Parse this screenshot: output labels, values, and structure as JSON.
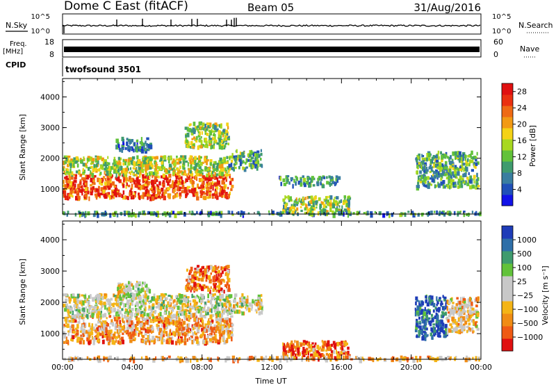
{
  "header": {
    "station": "Dome C East (fitACF)",
    "beam": "Beam 05",
    "date": "31/Aug/2016"
  },
  "top_panels": {
    "nsky_label": "N.Sky",
    "nsky_top_tick": "10^5",
    "nsky_bottom_tick": "10^0",
    "nsearch_label": "N.Search",
    "nsearch_top_tick": "10^5",
    "nsearch_bottom_tick": "10^0",
    "freq_label": "Freq.",
    "freq_unit": "[MHz]",
    "freq_top_tick": "18",
    "freq_bottom_tick": "8",
    "nave_label": "Nave",
    "nave_top_tick": "60",
    "nave_bottom_tick": "0",
    "cpid_label": "CPID",
    "cpid_value": "twofsound 3501"
  },
  "chart_data": [
    {
      "type": "heatmap",
      "panel": "power",
      "ylabel": "Slant Range [km]",
      "xlabel": "",
      "ylim": [
        180,
        4600
      ],
      "xlim_hours": [
        0,
        24
      ],
      "y_ticks": [
        "1000",
        "2000",
        "3000",
        "4000"
      ],
      "colorbar": {
        "label": "Power [dB]",
        "ticks": [
          "4",
          "8",
          "12",
          "16",
          "20",
          "24",
          "28"
        ],
        "range": [
          0,
          30
        ],
        "colors": [
          "#1212e8",
          "#2050b8",
          "#3a7ea0",
          "#3f9b6e",
          "#62c23a",
          "#a8d820",
          "#f4d216",
          "#f29a14",
          "#ef6a14",
          "#ea3010",
          "#e01010"
        ]
      },
      "regions": [
        {
          "t": [
            0.0,
            9.7
          ],
          "r": [
            750,
            1500
          ],
          "level": 0.82
        },
        {
          "t": [
            0.0,
            9.6
          ],
          "r": [
            1500,
            2100
          ],
          "level": 0.5
        },
        {
          "t": [
            3.0,
            5.0
          ],
          "r": [
            2300,
            2700
          ],
          "level": 0.25
        },
        {
          "t": [
            7.0,
            9.5
          ],
          "r": [
            2400,
            3200
          ],
          "level": 0.45
        },
        {
          "t": [
            9.5,
            11.4
          ],
          "r": [
            1700,
            2300
          ],
          "level": 0.35
        },
        {
          "t": [
            12.4,
            15.8
          ],
          "r": [
            1150,
            1450
          ],
          "level": 0.3
        },
        {
          "t": [
            12.6,
            16.4
          ],
          "r": [
            250,
            800
          ],
          "level": 0.45
        },
        {
          "t": [
            20.2,
            23.8
          ],
          "r": [
            1100,
            2250
          ],
          "level": 0.35
        },
        {
          "t": [
            0.0,
            24.0
          ],
          "r": [
            200,
            300
          ],
          "level": 0.3
        }
      ]
    },
    {
      "type": "heatmap",
      "panel": "velocity",
      "ylabel": "Slant Range [km]",
      "xlabel": "Time UT",
      "ylim": [
        180,
        4600
      ],
      "xlim_hours": [
        0,
        24
      ],
      "y_ticks": [
        "1000",
        "2000",
        "3000",
        "4000"
      ],
      "x_ticks": [
        "00:00",
        "04:00",
        "08:00",
        "12:00",
        "16:00",
        "20:00",
        "00:00"
      ],
      "colorbar": {
        "label": "Velocity [m s⁻¹]",
        "ticks": [
          "1000",
          "500",
          "100",
          "25",
          "−25",
          "−100",
          "−500",
          "−1000"
        ],
        "range": [
          -1200,
          1200
        ],
        "colors": [
          "#e01010",
          "#ef5a14",
          "#f08c14",
          "#f4b416",
          "#c8c8c8",
          "#c8c8c8",
          "#62c23a",
          "#3f9b6e",
          "#2e6fa8",
          "#1e3cb8"
        ]
      },
      "regions": [
        {
          "t": [
            0.0,
            9.7
          ],
          "r": [
            750,
            1600
          ],
          "level": 0.3
        },
        {
          "t": [
            0.0,
            9.6
          ],
          "r": [
            1600,
            2300
          ],
          "level": 0.5
        },
        {
          "t": [
            3.0,
            5.0
          ],
          "r": [
            2200,
            2700
          ],
          "level": 0.5
        },
        {
          "t": [
            7.0,
            9.5
          ],
          "r": [
            2400,
            3200
          ],
          "level": 0.2
        },
        {
          "t": [
            9.5,
            11.4
          ],
          "r": [
            1700,
            2300
          ],
          "level": 0.5
        },
        {
          "t": [
            12.6,
            16.4
          ],
          "r": [
            250,
            800
          ],
          "level": 0.2
        },
        {
          "t": [
            20.2,
            22.0
          ],
          "r": [
            900,
            2250
          ],
          "level": 0.9
        },
        {
          "t": [
            22.0,
            23.8
          ],
          "r": [
            1100,
            2200
          ],
          "level": 0.4
        },
        {
          "t": [
            0.0,
            24.0
          ],
          "r": [
            200,
            300
          ],
          "level": 0.35
        }
      ]
    }
  ]
}
